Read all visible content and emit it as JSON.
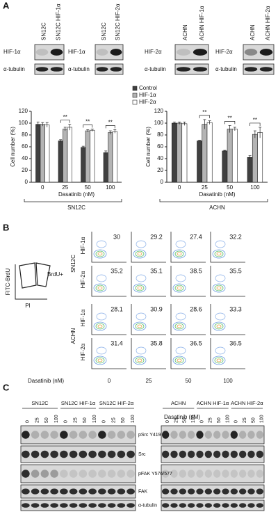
{
  "panel_labels": [
    "A",
    "B",
    "C"
  ],
  "panel_a": {
    "blots": [
      {
        "lanes": [
          "SN12C",
          "SN12C HIF-1α"
        ],
        "rows": [
          "HIF-1α",
          "α-tubulin"
        ]
      },
      {
        "lanes": [
          "SN12C",
          "SN12C HIF-2α"
        ],
        "rows": [
          "HIF-1α",
          "α-tubulin"
        ]
      },
      {
        "lanes": [
          "ACHN",
          "ACHN HIF-1α"
        ],
        "rows": [
          "HIF-2α",
          "α-tubulin"
        ]
      },
      {
        "lanes": [
          "ACHN",
          "ACHN HIF-2α"
        ],
        "rows": [
          "HIF-2α",
          "α-tubulin"
        ]
      }
    ]
  },
  "chart_data": [
    {
      "type": "bar",
      "y_label": "Cell number (%)",
      "x_label": "Dasatinib (nM)",
      "group_label": "SN12C",
      "categories": [
        "0",
        "25",
        "50",
        "100"
      ],
      "series": [
        {
          "name": "Control",
          "color": "#404040",
          "values": [
            98,
            70,
            59,
            50
          ],
          "errors": [
            4,
            2,
            2,
            3
          ]
        },
        {
          "name": "HIF-1α",
          "color": "#b4b4b4",
          "values": [
            98,
            90,
            87,
            84
          ],
          "errors": [
            3,
            3,
            2,
            3
          ]
        },
        {
          "name": "HIF-2α",
          "color": "#ffffff",
          "values": [
            97,
            93,
            88,
            86
          ],
          "errors": [
            4,
            5,
            2,
            3
          ]
        }
      ],
      "significance": [
        null,
        "**",
        "**",
        "**"
      ],
      "ylim": [
        0,
        120
      ],
      "yticks": [
        0,
        20,
        40,
        60,
        80,
        100,
        120
      ]
    },
    {
      "type": "bar",
      "y_label": "Cell number (%)",
      "x_label": "Dasatinib (nM)",
      "group_label": "ACHN",
      "categories": [
        "0",
        "25",
        "50",
        "100"
      ],
      "series": [
        {
          "color": "#404040",
          "values": [
            100,
            70,
            53,
            42
          ],
          "errors": [
            2,
            1,
            1,
            3
          ]
        },
        {
          "color": "#b4b4b4",
          "values": [
            100,
            98,
            90,
            81
          ],
          "errors": [
            2,
            8,
            6,
            6
          ]
        },
        {
          "color": "#ffffff",
          "values": [
            99,
            101,
            90,
            84
          ],
          "errors": [
            3,
            3,
            3,
            9
          ]
        }
      ],
      "significance": [
        null,
        "**",
        "**",
        "**"
      ],
      "ylim": [
        0,
        120
      ],
      "yticks": [
        0,
        20,
        40,
        60,
        80,
        100,
        120
      ]
    }
  ],
  "panel_b": {
    "y_axis": "FITC-BrdU",
    "x_axis": "PI",
    "gate_label": "BrdU+",
    "x_label": "Dasatinib (nM)",
    "columns": [
      "0",
      "25",
      "50",
      "100"
    ],
    "groups": [
      {
        "name": "SN12C",
        "rows": [
          {
            "label": "HIF-1α",
            "values": [
              "30",
              "29.2",
              "27.4",
              "32.2"
            ]
          },
          {
            "label": "HIF-2α",
            "values": [
              "35.2",
              "35.1",
              "38.5",
              "35.5"
            ]
          }
        ]
      },
      {
        "name": "ACHN",
        "rows": [
          {
            "label": "HIF-1α",
            "values": [
              "28.1",
              "30.9",
              "28.6",
              "33.3"
            ]
          },
          {
            "label": "HIF-2α",
            "values": [
              "31.4",
              "35.8",
              "36.5",
              "36.5"
            ]
          }
        ]
      }
    ]
  },
  "panel_c": {
    "treatment": "Dasatinib (nM)",
    "lanes": [
      "0",
      "25",
      "50",
      "100"
    ],
    "sides": [
      {
        "groups": [
          "SN12C",
          "SN12C HIF-1α",
          "SN12C HIF-2α"
        ]
      },
      {
        "groups": [
          "ACHN",
          "ACHN HIF-1α",
          "ACHN HIF-2α"
        ]
      }
    ],
    "rows": [
      "pSrc Y419",
      "Src",
      "pFAK Y576/577",
      "FAK",
      "α-tubulin"
    ]
  }
}
